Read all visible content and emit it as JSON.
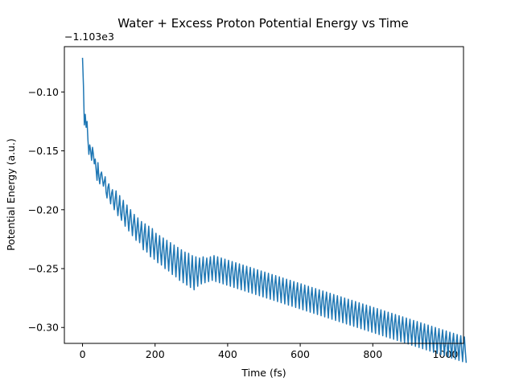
{
  "chart_data": {
    "type": "line",
    "title": "Water + Excess Proton Potential Energy vs Time",
    "xlabel": "Time (fs)",
    "ylabel": "Potential Energy (a.u.)",
    "y_offset_label": "−1.103e3",
    "y_offset": -1103,
    "xlim": [
      -50,
      1050
    ],
    "ylim": [
      -0.3135,
      -0.0615
    ],
    "grid": false,
    "x_ticks": [
      0,
      200,
      400,
      600,
      800,
      1000
    ],
    "x_tick_labels": [
      "0",
      "200",
      "400",
      "600",
      "800",
      "1000"
    ],
    "y_ticks": [
      -0.3,
      -0.25,
      -0.2,
      -0.15,
      -0.1
    ],
    "y_tick_labels": [
      "−0.30",
      "−0.25",
      "−0.20",
      "−0.15",
      "−0.10"
    ],
    "series": [
      {
        "color": "#1f77b4",
        "x_start": 0,
        "x_step": 2.5,
        "y_relative": [
          -0.071,
          -0.094,
          -0.128,
          -0.119,
          -0.13,
          -0.125,
          -0.141,
          -0.153,
          -0.145,
          -0.15,
          -0.158,
          -0.147,
          -0.153,
          -0.161,
          -0.157,
          -0.166,
          -0.175,
          -0.16,
          -0.172,
          -0.178,
          -0.17,
          -0.168,
          -0.174,
          -0.18,
          -0.176,
          -0.172,
          -0.185,
          -0.19,
          -0.181,
          -0.178,
          -0.188,
          -0.195,
          -0.186,
          -0.183,
          -0.193,
          -0.2,
          -0.191,
          -0.184,
          -0.196,
          -0.205,
          -0.197,
          -0.188,
          -0.203,
          -0.209,
          -0.198,
          -0.192,
          -0.205,
          -0.214,
          -0.203,
          -0.196,
          -0.208,
          -0.218,
          -0.207,
          -0.2,
          -0.211,
          -0.222,
          -0.212,
          -0.204,
          -0.214,
          -0.226,
          -0.216,
          -0.207,
          -0.219,
          -0.228,
          -0.218,
          -0.21,
          -0.224,
          -0.234,
          -0.22,
          -0.212,
          -0.226,
          -0.236,
          -0.224,
          -0.214,
          -0.229,
          -0.24,
          -0.227,
          -0.216,
          -0.23,
          -0.242,
          -0.228,
          -0.22,
          -0.233,
          -0.245,
          -0.231,
          -0.222,
          -0.236,
          -0.247,
          -0.233,
          -0.224,
          -0.238,
          -0.25,
          -0.235,
          -0.226,
          -0.24,
          -0.252,
          -0.238,
          -0.228,
          -0.243,
          -0.255,
          -0.24,
          -0.23,
          -0.245,
          -0.257,
          -0.243,
          -0.232,
          -0.247,
          -0.26,
          -0.244,
          -0.234,
          -0.249,
          -0.262,
          -0.247,
          -0.236,
          -0.252,
          -0.264,
          -0.248,
          -0.237,
          -0.254,
          -0.266,
          -0.25,
          -0.239,
          -0.256,
          -0.268,
          -0.252,
          -0.24,
          -0.255,
          -0.265,
          -0.25,
          -0.241,
          -0.254,
          -0.263,
          -0.249,
          -0.24,
          -0.253,
          -0.262,
          -0.248,
          -0.241,
          -0.252,
          -0.261,
          -0.247,
          -0.24,
          -0.251,
          -0.26,
          -0.247,
          -0.239,
          -0.251,
          -0.261,
          -0.247,
          -0.24,
          -0.252,
          -0.262,
          -0.248,
          -0.241,
          -0.253,
          -0.263,
          -0.249,
          -0.242,
          -0.254,
          -0.264,
          -0.25,
          -0.243,
          -0.255,
          -0.265,
          -0.251,
          -0.244,
          -0.256,
          -0.266,
          -0.252,
          -0.245,
          -0.257,
          -0.267,
          -0.253,
          -0.246,
          -0.258,
          -0.268,
          -0.254,
          -0.247,
          -0.259,
          -0.269,
          -0.255,
          -0.248,
          -0.26,
          -0.27,
          -0.256,
          -0.249,
          -0.261,
          -0.271,
          -0.257,
          -0.25,
          -0.262,
          -0.272,
          -0.258,
          -0.251,
          -0.263,
          -0.273,
          -0.259,
          -0.252,
          -0.264,
          -0.274,
          -0.26,
          -0.253,
          -0.265,
          -0.275,
          -0.261,
          -0.254,
          -0.266,
          -0.276,
          -0.262,
          -0.255,
          -0.267,
          -0.277,
          -0.263,
          -0.256,
          -0.268,
          -0.278,
          -0.264,
          -0.257,
          -0.269,
          -0.279,
          -0.265,
          -0.258,
          -0.27,
          -0.28,
          -0.266,
          -0.259,
          -0.271,
          -0.281,
          -0.267,
          -0.26,
          -0.272,
          -0.282,
          -0.268,
          -0.261,
          -0.273,
          -0.283,
          -0.269,
          -0.262,
          -0.274,
          -0.284,
          -0.27,
          -0.263,
          -0.275,
          -0.285,
          -0.271,
          -0.264,
          -0.276,
          -0.286,
          -0.272,
          -0.265,
          -0.277,
          -0.287,
          -0.273,
          -0.266,
          -0.278,
          -0.288,
          -0.274,
          -0.267,
          -0.279,
          -0.289,
          -0.275,
          -0.268,
          -0.28,
          -0.29,
          -0.276,
          -0.269,
          -0.281,
          -0.291,
          -0.277,
          -0.27,
          -0.282,
          -0.292,
          -0.278,
          -0.271,
          -0.283,
          -0.293,
          -0.279,
          -0.272,
          -0.284,
          -0.294,
          -0.28,
          -0.273,
          -0.285,
          -0.295,
          -0.281,
          -0.274,
          -0.286,
          -0.296,
          -0.282,
          -0.275,
          -0.287,
          -0.297,
          -0.283,
          -0.276,
          -0.288,
          -0.298,
          -0.284,
          -0.277,
          -0.289,
          -0.299,
          -0.285,
          -0.278,
          -0.29,
          -0.3,
          -0.286,
          -0.279,
          -0.291,
          -0.301,
          -0.287,
          -0.28,
          -0.292,
          -0.302,
          -0.288,
          -0.281,
          -0.293,
          -0.303,
          -0.289,
          -0.282,
          -0.294,
          -0.304,
          -0.29,
          -0.283,
          -0.295,
          -0.305,
          -0.291,
          -0.284,
          -0.296,
          -0.306,
          -0.292,
          -0.285,
          -0.297,
          -0.307,
          -0.293,
          -0.286,
          -0.298,
          -0.308,
          -0.294,
          -0.287,
          -0.299,
          -0.309,
          -0.295,
          -0.288,
          -0.3,
          -0.31,
          -0.296,
          -0.289,
          -0.301,
          -0.311,
          -0.297,
          -0.29,
          -0.302,
          -0.312,
          -0.298,
          -0.291,
          -0.303,
          -0.313,
          -0.299,
          -0.292,
          -0.304,
          -0.314,
          -0.3,
          -0.293,
          -0.305,
          -0.315,
          -0.301,
          -0.294,
          -0.306,
          -0.316,
          -0.302,
          -0.295,
          -0.307,
          -0.317,
          -0.303,
          -0.296,
          -0.308,
          -0.318,
          -0.304,
          -0.297,
          -0.309,
          -0.319,
          -0.305,
          -0.298,
          -0.31,
          -0.32,
          -0.306,
          -0.299,
          -0.311,
          -0.321,
          -0.307,
          -0.3,
          -0.312,
          -0.322,
          -0.308,
          -0.301,
          -0.313,
          -0.323,
          -0.309,
          -0.302,
          -0.314,
          -0.324,
          -0.31,
          -0.303,
          -0.315,
          -0.325,
          -0.311,
          -0.304,
          -0.316,
          -0.326,
          -0.312,
          -0.305,
          -0.317,
          -0.327,
          -0.313,
          -0.306,
          -0.318,
          -0.328,
          -0.314,
          -0.307,
          -0.319,
          -0.329,
          -0.315,
          -0.308,
          -0.32,
          -0.33
        ]
      }
    ]
  }
}
